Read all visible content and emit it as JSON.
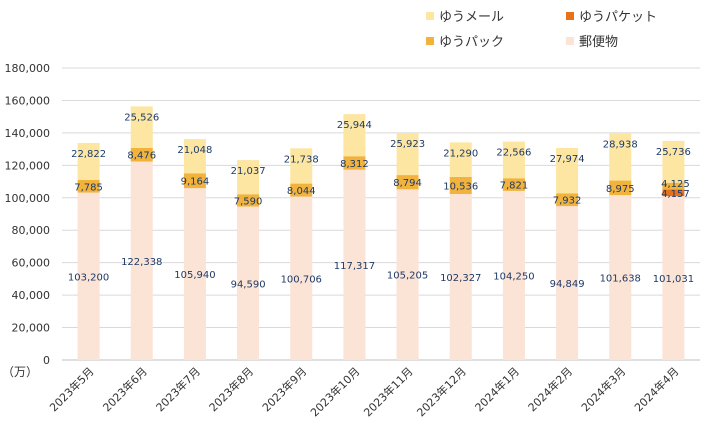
{
  "chart_data": {
    "type": "stacked-bar",
    "categories": [
      "2023年5月",
      "2023年6月",
      "2023年7月",
      "2023年8月",
      "2023年9月",
      "2023年10月",
      "2023年11月",
      "2023年12月",
      "2024年1月",
      "2024年2月",
      "2024年3月",
      "2024年4月"
    ],
    "series": [
      {
        "name": "郵便物",
        "color": "#fbe3d6",
        "values": [
          103200,
          122338,
          105940,
          94590,
          100706,
          117317,
          105205,
          102327,
          104250,
          94849,
          101638,
          101031
        ]
      },
      {
        "name": "ゆうパケット",
        "color": "#e8711c",
        "values": [
          0,
          0,
          0,
          0,
          0,
          0,
          0,
          0,
          0,
          0,
          0,
          4157
        ]
      },
      {
        "name": "ゆうパック",
        "color": "#f2b33d",
        "values": [
          7785,
          8476,
          9164,
          7590,
          8044,
          8312,
          8794,
          10536,
          7821,
          7932,
          8975,
          4125
        ]
      },
      {
        "name": "ゆうメール",
        "color": "#fce6a2",
        "values": [
          22822,
          25526,
          21048,
          21037,
          21738,
          25944,
          25923,
          21290,
          22566,
          27974,
          28938,
          25736
        ]
      }
    ],
    "data_labels": {
      "mail_post": [
        "103,200",
        "122,338",
        "105,940",
        "94,590",
        "100,706",
        "117,317",
        "105,205",
        "102,327",
        "104,250",
        "94,849",
        "101,638",
        "101,031"
      ],
      "yu_pack": [
        "7,785",
        "8,476",
        "9,164",
        "7,590",
        "8,044",
        "8,312",
        "8,794",
        "10,536",
        "7,821",
        "7,932",
        "8,975",
        "4,125"
      ],
      "yu_mail": [
        "22,822",
        "25,526",
        "21,048",
        "21,037",
        "21,738",
        "25,944",
        "25,923",
        "21,290",
        "22,566",
        "27,974",
        "28,938",
        "25,736"
      ],
      "yu_packet": [
        "",
        "",
        "",
        "",
        "",
        "",
        "",
        "",
        "",
        "",
        "",
        "4,157"
      ]
    },
    "ylim": [
      0,
      180000
    ],
    "yticks": [
      0,
      20000,
      40000,
      60000,
      80000,
      100000,
      120000,
      140000,
      160000,
      180000
    ],
    "ytick_labels": [
      "0",
      "20,000",
      "40,000",
      "60,000",
      "80,000",
      "100,000",
      "120,000",
      "140,000",
      "160,000",
      "180,000"
    ],
    "y_unit_label": "（万）",
    "legend": [
      {
        "label": "ゆうメール",
        "color": "#fce6a2"
      },
      {
        "label": "ゆうパケット",
        "color": "#e8711c"
      },
      {
        "label": "ゆうパック",
        "color": "#f2b33d"
      },
      {
        "label": "郵便物",
        "color": "#fbe3d6"
      }
    ],
    "legend_position": "top-right",
    "grid": true
  }
}
